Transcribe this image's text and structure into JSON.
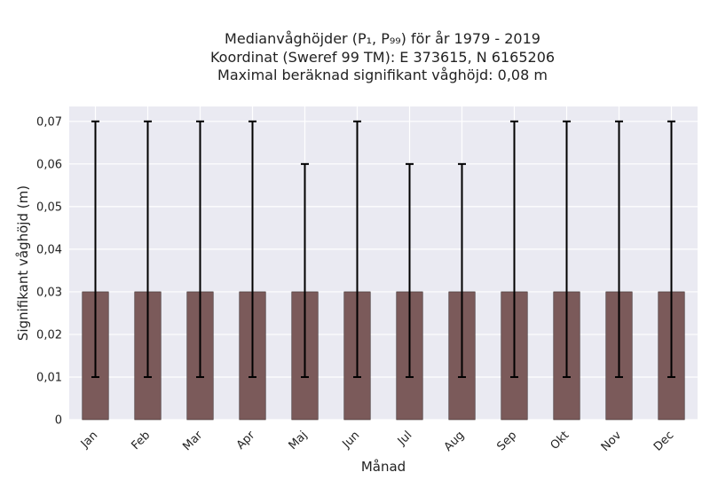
{
  "chart_data": {
    "type": "bar",
    "title_lines": [
      "Medianvåghöjder (P₁, P₉₉) för år 1979 - 2019",
      "Koordinat (Sweref 99 TM): E 373615, N 6165206",
      "Maximal beräknad signifikant våghöjd: 0,08 m"
    ],
    "xlabel": "Månad",
    "ylabel": "Signifikant våghöjd (m)",
    "categories": [
      "Jan",
      "Feb",
      "Mar",
      "Apr",
      "Maj",
      "Jun",
      "Jul",
      "Aug",
      "Sep",
      "Okt",
      "Nov",
      "Dec"
    ],
    "values": [
      0.03,
      0.03,
      0.03,
      0.03,
      0.03,
      0.03,
      0.03,
      0.03,
      0.03,
      0.03,
      0.03,
      0.03
    ],
    "error_low": [
      0.01,
      0.01,
      0.01,
      0.01,
      0.01,
      0.01,
      0.01,
      0.01,
      0.01,
      0.01,
      0.01,
      0.01
    ],
    "error_high": [
      0.07,
      0.07,
      0.07,
      0.07,
      0.06,
      0.07,
      0.06,
      0.06,
      0.07,
      0.07,
      0.07,
      0.07
    ],
    "yticks": [
      0,
      0.01,
      0.02,
      0.03,
      0.04,
      0.05,
      0.06,
      0.07
    ],
    "ytick_labels": [
      "0",
      "0,01",
      "0,02",
      "0,03",
      "0,04",
      "0,05",
      "0,06",
      "0,07"
    ],
    "ylim": [
      0,
      0.0735
    ],
    "grid": true,
    "bar_color": "#7b5a5a",
    "error_color": "#000000",
    "background_color": "#eaeaf2"
  }
}
